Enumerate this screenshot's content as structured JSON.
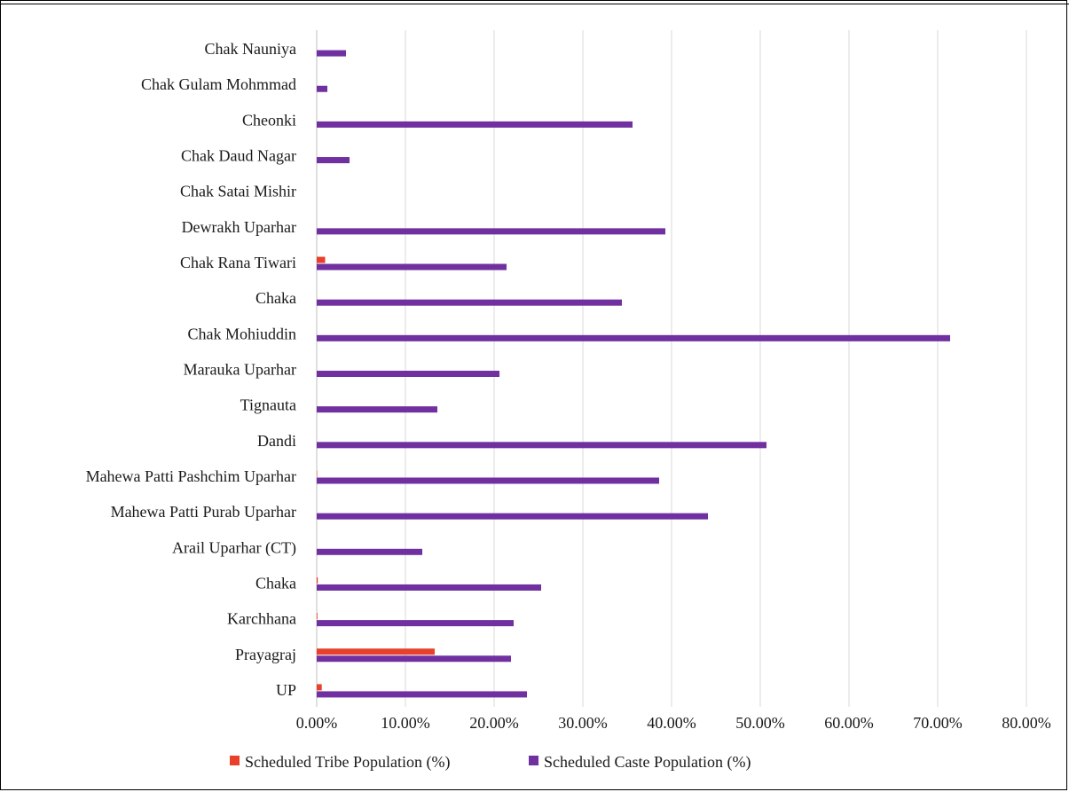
{
  "chart_data": {
    "type": "bar",
    "orientation": "horizontal",
    "categories": [
      "UP",
      "Prayagraj",
      "Karchhana",
      "Chaka",
      "Arail Uparhar (CT)",
      "Mahewa Patti Purab Uparhar",
      "Mahewa Patti Pashchim Uparhar",
      "Dandi",
      "Tignauta",
      "Marauka Uparhar",
      "Chak Mohiuddin",
      "Chaka",
      "Chak Rana Tiwari",
      "Dewrakh Uparhar",
      "Chak Satai Mishir",
      "Chak Daud Nagar",
      "Cheonki",
      "Chak Gulam Mohmmad",
      "Chak Nauniya"
    ],
    "series": [
      {
        "name": "Scheduled Tribe Population (%)",
        "color": "#e8402a",
        "values": [
          0.57,
          13.3,
          0.08,
          0.12,
          0.0,
          0.0,
          0.05,
          0.0,
          0.0,
          0.0,
          0.0,
          0.0,
          0.95,
          0.0,
          0.0,
          0.0,
          0.0,
          0.0,
          0.0
        ]
      },
      {
        "name": "Scheduled Caste Population (%)",
        "color": "#7030a0",
        "values": [
          23.7,
          21.9,
          22.2,
          25.3,
          11.9,
          44.1,
          38.6,
          50.7,
          13.6,
          20.6,
          71.4,
          34.4,
          21.4,
          39.3,
          0.0,
          3.7,
          35.6,
          1.2,
          3.3
        ]
      }
    ],
    "xlim": [
      0,
      80
    ],
    "xticks": [
      "0.00%",
      "10.00%",
      "20.00%",
      "30.00%",
      "40.00%",
      "50.00%",
      "60.00%",
      "70.00%",
      "80.00%"
    ],
    "grid": true,
    "legend_position": "bottom"
  }
}
